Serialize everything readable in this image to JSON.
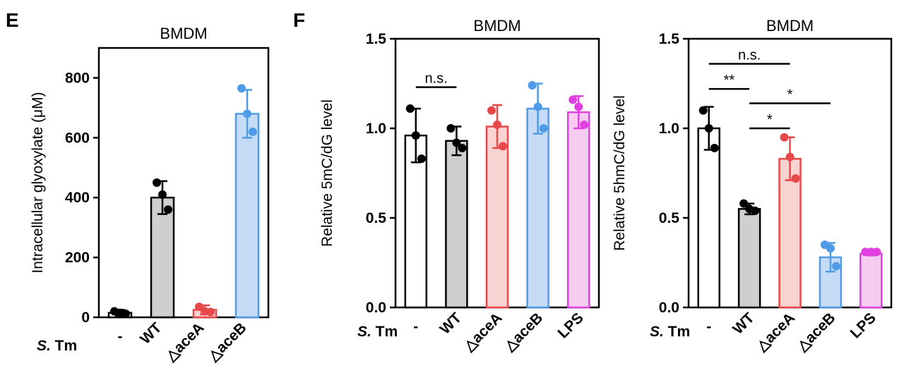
{
  "panel_labels": {
    "e": "E",
    "f": "F"
  },
  "row_label": {
    "italic": "S.",
    "plain": " Tm"
  },
  "chart_data": [
    {
      "type": "bar",
      "title": "BMDM",
      "ylabel": "Intracellular glyoxylate (μM)",
      "ylim": [
        0,
        900
      ],
      "yticks": [
        0,
        200,
        400,
        600,
        800
      ],
      "categories": [
        "-",
        "WT",
        "△aceA",
        "△aceB"
      ],
      "values": [
        15,
        400,
        25,
        680
      ],
      "errors": [
        10,
        55,
        15,
        80
      ],
      "points": [
        [
          20,
          15,
          12
        ],
        [
          450,
          410,
          360
        ],
        [
          35,
          20,
          18
        ],
        [
          765,
          680,
          620
        ]
      ],
      "colors": [
        "#000000",
        "#000000",
        "#e8484a",
        "#4f9be8"
      ],
      "fills": [
        "#ffffff",
        "#cfcfcf",
        "#f9d2d2",
        "#c6dcf6"
      ],
      "significance": []
    },
    {
      "type": "bar",
      "title": "BMDM",
      "ylabel": "Relative 5mC/dG level",
      "ylim": [
        0,
        1.5
      ],
      "yticks": [
        0.0,
        0.5,
        1.0,
        1.5
      ],
      "categories": [
        "-",
        "WT",
        "△aceA",
        "△aceB",
        "LPS"
      ],
      "values": [
        0.96,
        0.93,
        1.01,
        1.11,
        1.09
      ],
      "errors": [
        0.15,
        0.08,
        0.12,
        0.14,
        0.09
      ],
      "points": [
        [
          1.11,
          0.96,
          0.83
        ],
        [
          1.0,
          0.92,
          0.89
        ],
        [
          1.1,
          1.02,
          0.9
        ],
        [
          1.24,
          1.12,
          1.0
        ],
        [
          1.16,
          1.12,
          1.02
        ]
      ],
      "colors": [
        "#000000",
        "#000000",
        "#e8484a",
        "#4f9be8",
        "#e040e0"
      ],
      "fills": [
        "#ffffff",
        "#cfcfcf",
        "#f9d2d2",
        "#c6dcf6",
        "#f6cdf0"
      ],
      "significance": [
        {
          "from": 0,
          "to": 1,
          "y": 1.23,
          "label": "n.s."
        }
      ]
    },
    {
      "type": "bar",
      "title": "BMDM",
      "ylabel": "Relative 5hmC/dG level",
      "ylim": [
        0,
        1.5
      ],
      "yticks": [
        0.0,
        0.5,
        1.0,
        1.5
      ],
      "categories": [
        "-",
        "WT",
        "△aceA",
        "△aceB",
        "LPS"
      ],
      "values": [
        1.0,
        0.55,
        0.83,
        0.28,
        0.3
      ],
      "errors": [
        0.12,
        0.03,
        0.12,
        0.08,
        0.01
      ],
      "points": [
        [
          1.1,
          1.0,
          0.89
        ],
        [
          0.58,
          0.55,
          0.54
        ],
        [
          0.95,
          0.84,
          0.72
        ],
        [
          0.35,
          0.33,
          0.23
        ],
        [
          0.31,
          0.31,
          0.31
        ]
      ],
      "colors": [
        "#000000",
        "#000000",
        "#e8484a",
        "#4f9be8",
        "#e040e0"
      ],
      "fills": [
        "#ffffff",
        "#cfcfcf",
        "#f9d2d2",
        "#c6dcf6",
        "#f6cdf0"
      ],
      "significance": [
        {
          "from": 0,
          "to": 2,
          "y": 1.36,
          "label": "n.s."
        },
        {
          "from": 0,
          "to": 1,
          "y": 1.22,
          "label": "**"
        },
        {
          "from": 1,
          "to": 3,
          "y": 1.14,
          "label": "*"
        },
        {
          "from": 1,
          "to": 2,
          "y": 1.0,
          "label": "*"
        }
      ]
    }
  ]
}
